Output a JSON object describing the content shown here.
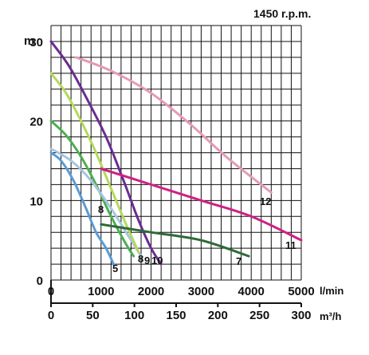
{
  "chart_data": {
    "type": "line",
    "title": "1450 r.p.m.",
    "ylabel": "m",
    "xlabel_primary": "l/min",
    "xlabel_secondary": "m³/h",
    "xlim": [
      0,
      5000
    ],
    "ylim": [
      0,
      32
    ],
    "x_ticks": [
      "0",
      "1000",
      "2000",
      "3000",
      "4000",
      "5000"
    ],
    "y_ticks": [
      "0",
      "10",
      "20",
      "30"
    ],
    "x2_ticks": [
      "0",
      "50",
      "100",
      "150",
      "200",
      "250",
      "300"
    ],
    "grid": true,
    "series": [
      {
        "name": "5",
        "color": "#5b9bd5",
        "points": [
          [
            0,
            16
          ],
          [
            200,
            15
          ],
          [
            450,
            12.5
          ],
          [
            700,
            9
          ],
          [
            900,
            6
          ],
          [
            1100,
            4
          ],
          [
            1250,
            2
          ]
        ]
      },
      {
        "name": "8",
        "color": "#4caf50",
        "points": [
          [
            0,
            20
          ],
          [
            300,
            18.2
          ],
          [
            600,
            15.5
          ],
          [
            900,
            12
          ],
          [
            1200,
            8
          ],
          [
            1500,
            4.5
          ],
          [
            1650,
            3
          ]
        ]
      },
      {
        "name": "8",
        "color": "#a7c5e0",
        "points": [
          [
            0,
            16.5
          ],
          [
            400,
            15
          ],
          [
            800,
            12.5
          ],
          [
            1200,
            9
          ],
          [
            1500,
            6
          ],
          [
            1800,
            3
          ]
        ]
      },
      {
        "name": "9",
        "color": "#b5d95a",
        "points": [
          [
            0,
            26
          ],
          [
            300,
            23.5
          ],
          [
            600,
            20
          ],
          [
            900,
            16
          ],
          [
            1200,
            11.5
          ],
          [
            1500,
            7
          ],
          [
            1750,
            3.5
          ]
        ]
      },
      {
        "name": "10",
        "color": "#6a2c91",
        "points": [
          [
            0,
            30
          ],
          [
            350,
            27
          ],
          [
            700,
            23
          ],
          [
            1100,
            18
          ],
          [
            1450,
            12.5
          ],
          [
            1750,
            7.5
          ],
          [
            2000,
            4
          ],
          [
            2200,
            2
          ]
        ]
      },
      {
        "name": "7",
        "color": "#2e6b36",
        "points": [
          [
            1000,
            7
          ],
          [
            2000,
            6
          ],
          [
            3000,
            5
          ],
          [
            3950,
            3
          ]
        ]
      },
      {
        "name": "11",
        "color": "#d11f82",
        "points": [
          [
            1000,
            14
          ],
          [
            2000,
            12
          ],
          [
            3000,
            10
          ],
          [
            4000,
            8
          ],
          [
            5000,
            5
          ]
        ]
      },
      {
        "name": "12",
        "color": "#e59ab8",
        "points": [
          [
            500,
            28
          ],
          [
            1200,
            26.3
          ],
          [
            2000,
            23.5
          ],
          [
            2800,
            19.5
          ],
          [
            3500,
            15.5
          ],
          [
            4400,
            11
          ]
        ]
      }
    ]
  }
}
